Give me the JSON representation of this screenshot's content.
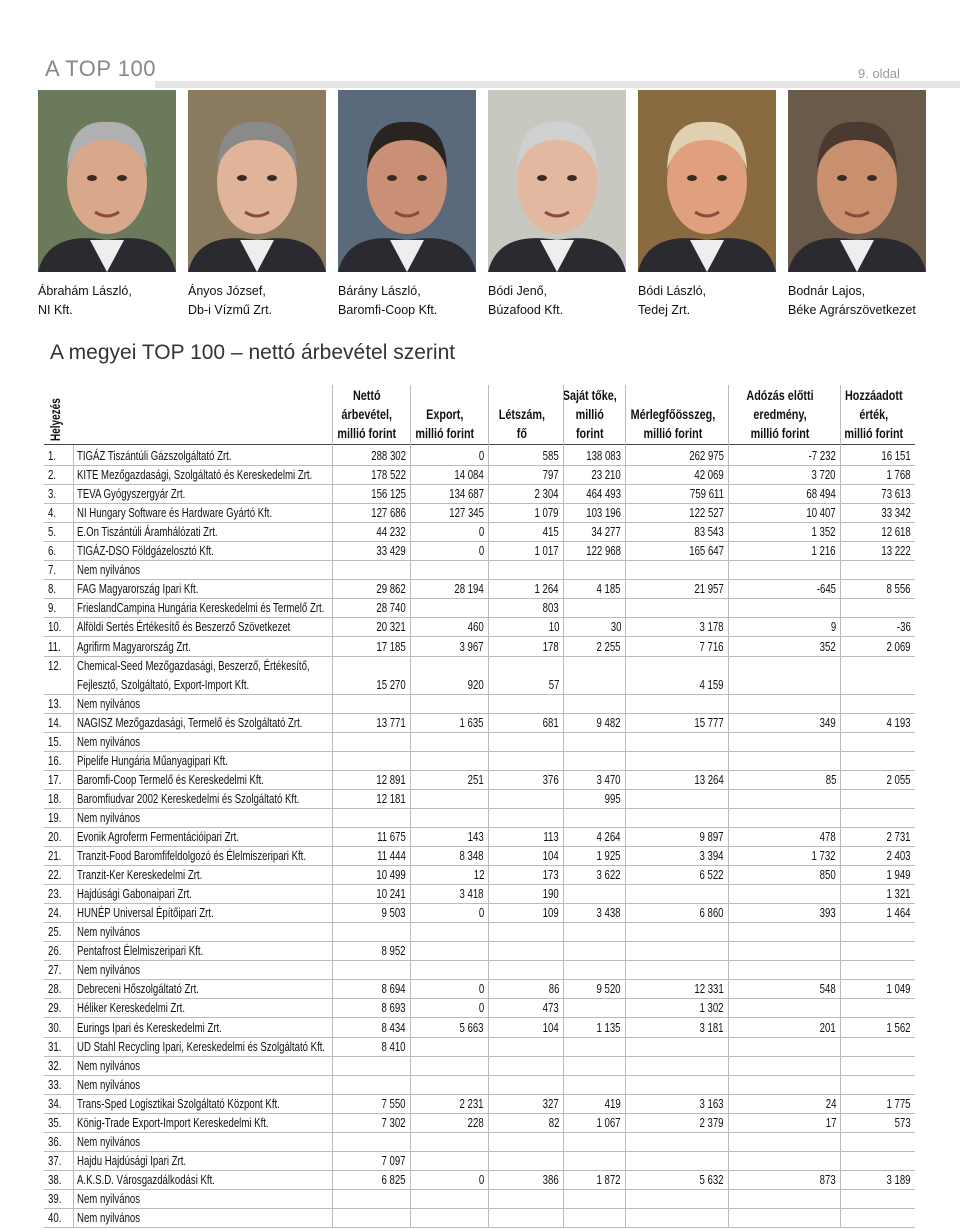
{
  "header": {
    "section": "A TOP 100",
    "page": "9. oldal"
  },
  "people": [
    {
      "name": "Ábrahám László,",
      "company": "NI Kft."
    },
    {
      "name": "Ányos József,",
      "company": "Db-i Vízmű Zrt."
    },
    {
      "name": "Bárány László,",
      "company": "Baromfi-Coop Kft."
    },
    {
      "name": "Bódi Jenő,",
      "company": "Búzafood Kft."
    },
    {
      "name": "Bódi László,",
      "company": "Tedej Zrt."
    },
    {
      "name": "Bodnár Lajos,",
      "company": "Béke Agrárszövetkezet"
    }
  ],
  "table": {
    "title": "A megyei TOP 100 – nettó árbevétel szerint",
    "columns": [
      "Helyezés",
      null,
      "Nettó\nárbevétel,\nmillió forint",
      "Export,\nmillió forint",
      "Létszám,\nfő",
      "Saját tőke,\nmillió\nforint",
      "Mérlegfőösszeg,\nmillió forint",
      "Adózás előtti\neredmény,\nmillió forint",
      "Hozzáadott\nérték,\nmillió forint"
    ],
    "rows": [
      [
        "1.",
        "TIGÁZ Tiszántúli Gázszolgáltató Zrt.",
        "288 302",
        "0",
        "585",
        "138 083",
        "262 975",
        "-7 232",
        "16 151"
      ],
      [
        "2.",
        "KITE Mezőgazdasági, Szolgáltató és Kereskedelmi Zrt.",
        "178 522",
        "14 084",
        "797",
        "23 210",
        "42 069",
        "3 720",
        "1 768"
      ],
      [
        "3.",
        "TEVA Gyógyszergyár Zrt.",
        "156 125",
        "134 687",
        "2 304",
        "464 493",
        "759 611",
        "68 494",
        "73 613"
      ],
      [
        "4.",
        "NI Hungary Software és Hardware Gyártó Kft.",
        "127 686",
        "127 345",
        "1 079",
        "103 196",
        "122 527",
        "10 407",
        "33 342"
      ],
      [
        "5.",
        "E.On Tiszántúli Áramhálózati Zrt.",
        "44 232",
        "0",
        "415",
        "34 277",
        "83 543",
        "1 352",
        "12 618"
      ],
      [
        "6.",
        "TIGÁZ-DSO Földgázelosztó Kft.",
        "33 429",
        "0",
        "1 017",
        "122 968",
        "165 647",
        "1 216",
        "13 222"
      ],
      [
        "7.",
        "Nem nyilvános",
        null,
        null,
        null,
        null,
        null,
        null,
        null
      ],
      [
        "8.",
        "FAG Magyarország Ipari Kft.",
        "29 862",
        "28 194",
        "1 264",
        "4 185",
        "21 957",
        "-645",
        "8 556"
      ],
      [
        "9.",
        "FrieslandCampina Hungária Kereskedelmi és Termelő Zrt.",
        "28 740",
        null,
        "803",
        null,
        null,
        null,
        null
      ],
      [
        "10.",
        "Alföldi Sertés Értékesítő és Beszerző Szövetkezet",
        "20 321",
        "460",
        "10",
        "30",
        "3 178",
        "9",
        "-36"
      ],
      [
        "11.",
        "Agrifirm Magyarország Zrt.",
        "17 185",
        "3 967",
        "178",
        "2 255",
        "7 716",
        "352",
        "2 069"
      ],
      [
        "12.",
        "Chemical-Seed Mezőgazdasági, Beszerző, Értékesítő, Fejlesztő, Szolgáltató, Export-Import Kft.",
        "15 270",
        "920",
        "57",
        null,
        "4 159",
        null,
        null
      ],
      [
        "13.",
        "Nem nyilvános",
        null,
        null,
        null,
        null,
        null,
        null,
        null
      ],
      [
        "14.",
        "NAGISZ Mezőgazdasági, Termelő és Szolgáltató Zrt.",
        "13 771",
        "1 635",
        "681",
        "9 482",
        "15 777",
        "349",
        "4 193"
      ],
      [
        "15.",
        "Nem nyilvános",
        null,
        null,
        null,
        null,
        null,
        null,
        null
      ],
      [
        "16.",
        "Pipelife Hungária Műanyagipari Kft.",
        null,
        null,
        null,
        null,
        null,
        null,
        null
      ],
      [
        "17.",
        "Baromfi-Coop Termelő és Kereskedelmi Kft.",
        "12 891",
        "251",
        "376",
        "3 470",
        "13 264",
        "85",
        "2 055"
      ],
      [
        "18.",
        "Baromfiudvar 2002 Kereskedelmi és Szolgáltató Kft.",
        "12 181",
        null,
        null,
        "995",
        null,
        null,
        null
      ],
      [
        "19.",
        "Nem nyilvános",
        null,
        null,
        null,
        null,
        null,
        null,
        null
      ],
      [
        "20.",
        "Evonik Agroferm Fermentációipari Zrt.",
        "11 675",
        "143",
        "113",
        "4 264",
        "9 897",
        "478",
        "2 731"
      ],
      [
        "21.",
        "Tranzit-Food Baromfifeldolgozó és Élelmiszeripari Kft.",
        "11 444",
        "8 348",
        "104",
        "1 925",
        "3 394",
        "1 732",
        "2 403"
      ],
      [
        "22.",
        "Tranzit-Ker Kereskedelmi Zrt.",
        "10 499",
        "12",
        "173",
        "3 622",
        "6 522",
        "850",
        "1 949"
      ],
      [
        "23.",
        "Hajdúsági Gabonaipari Zrt.",
        "10 241",
        "3 418",
        "190",
        null,
        null,
        null,
        "1 321"
      ],
      [
        "24.",
        "HUNÉP Universal Építőipari Zrt.",
        "9 503",
        "0",
        "109",
        "3 438",
        "6 860",
        "393",
        "1 464"
      ],
      [
        "25.",
        "Nem nyilvános",
        null,
        null,
        null,
        null,
        null,
        null,
        null
      ],
      [
        "26.",
        "Pentafrost Élelmiszeripari Kft.",
        "8 952",
        null,
        null,
        null,
        null,
        null,
        null
      ],
      [
        "27.",
        "Nem nyilvános",
        null,
        null,
        null,
        null,
        null,
        null,
        null
      ],
      [
        "28.",
        "Debreceni Hőszolgáltató Zrt.",
        "8 694",
        "0",
        "86",
        "9 520",
        "12 331",
        "548",
        "1 049"
      ],
      [
        "29.",
        "Héliker Kereskedelmi Zrt.",
        "8 693",
        "0",
        "473",
        null,
        "1 302",
        null,
        null
      ],
      [
        "30.",
        "Eurings Ipari és Kereskedelmi Zrt.",
        "8 434",
        "5 663",
        "104",
        "1 135",
        "3 181",
        "201",
        "1 562"
      ],
      [
        "31.",
        "UD Stahl Recycling Ipari, Kereskedelmi és Szolgáltató Kft.",
        "8 410",
        null,
        null,
        null,
        null,
        null,
        null
      ],
      [
        "32.",
        "Nem nyilvános",
        null,
        null,
        null,
        null,
        null,
        null,
        null
      ],
      [
        "33.",
        "Nem nyilvános",
        null,
        null,
        null,
        null,
        null,
        null,
        null
      ],
      [
        "34.",
        "Trans-Sped Logisztikai Szolgáltató Központ Kft.",
        "7 550",
        "2 231",
        "327",
        "419",
        "3 163",
        "24",
        "1 775"
      ],
      [
        "35.",
        "König-Trade Export-Import Kereskedelmi Kft.",
        "7 302",
        "228",
        "82",
        "1 067",
        "2 379",
        "17",
        "573"
      ],
      [
        "36.",
        "Nem nyilvános",
        null,
        null,
        null,
        null,
        null,
        null,
        null
      ],
      [
        "37.",
        "Hajdu Hajdúsági Ipari Zrt.",
        "7 097",
        null,
        null,
        null,
        null,
        null,
        null
      ],
      [
        "38.",
        "A.K.S.D. Városgazdálkodási Kft.",
        "6 825",
        "0",
        "386",
        "1 872",
        "5 632",
        "873",
        "3 189"
      ],
      [
        "39.",
        "Nem nyilvános",
        null,
        null,
        null,
        null,
        null,
        null,
        null
      ],
      [
        "40.",
        "Nem nyilvános",
        null,
        null,
        null,
        null,
        null,
        null,
        null
      ]
    ]
  }
}
